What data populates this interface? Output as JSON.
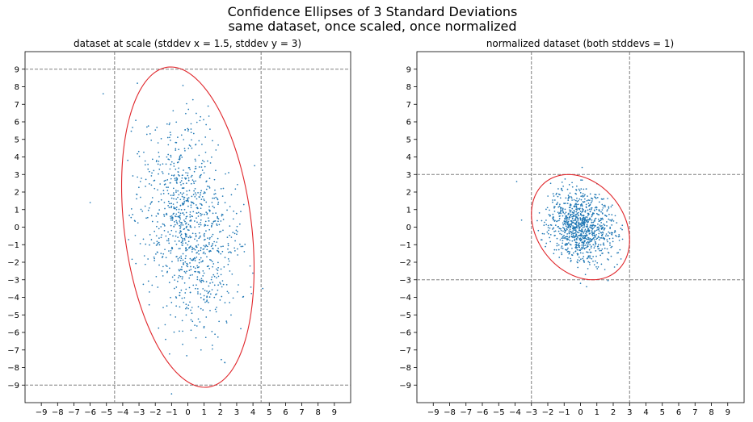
{
  "figure": {
    "title": "Confidence Ellipses of 3 Standard Deviations",
    "subtitle": "same dataset, once scaled, once normalized"
  },
  "colors": {
    "points": "#1f77b4",
    "ellipse": "#e0262b",
    "guides": "#7f7f7f"
  },
  "chart_data": [
    {
      "type": "scatter",
      "title": "dataset at scale (stddev x = 1.5, stddev y = 3)",
      "xlim": [
        -10,
        10
      ],
      "ylim": [
        -10,
        10
      ],
      "xticks": [
        -9,
        -8,
        -7,
        -6,
        -5,
        -4,
        -3,
        -2,
        -1,
        0,
        1,
        2,
        3,
        4,
        5,
        6,
        7,
        8,
        9
      ],
      "yticks": [
        -9,
        -8,
        -7,
        -6,
        -5,
        -4,
        -3,
        -2,
        -1,
        0,
        1,
        2,
        3,
        4,
        5,
        6,
        7,
        8,
        9
      ],
      "vlines": [
        -4.5,
        4.5
      ],
      "hlines": [
        -9,
        9
      ],
      "grid": false,
      "points": {
        "count": 1000,
        "x_stddev": 1.5,
        "y_stddev": 3,
        "correlation": -0.25,
        "outliers": [
          [
            -5.2,
            7.6
          ],
          [
            -6,
            1.4
          ],
          [
            -1,
            -9.5
          ],
          [
            -3.1,
            8.2
          ],
          [
            4.1,
            3.5
          ],
          [
            4.6,
            -3.5
          ]
        ]
      },
      "ellipse": {
        "stddevs": 3,
        "center": [
          0,
          0
        ],
        "semi_major": 9.2,
        "semi_minor": 3.9,
        "angle_deg": 98
      }
    },
    {
      "type": "scatter",
      "title": "normalized dataset (both stddevs = 1)",
      "xlim": [
        -10,
        10
      ],
      "ylim": [
        -10,
        10
      ],
      "xticks": [
        -9,
        -8,
        -7,
        -6,
        -5,
        -4,
        -3,
        -2,
        -1,
        0,
        1,
        2,
        3,
        4,
        5,
        6,
        7,
        8,
        9
      ],
      "yticks": [
        -9,
        -8,
        -7,
        -6,
        -5,
        -4,
        -3,
        -2,
        -1,
        0,
        1,
        2,
        3,
        4,
        5,
        6,
        7,
        8,
        9
      ],
      "vlines": [
        -3,
        3
      ],
      "hlines": [
        -3,
        3
      ],
      "grid": false,
      "points": {
        "count": 1000,
        "x_stddev": 1,
        "y_stddev": 1,
        "correlation": -0.25,
        "outliers": [
          [
            -3.6,
            0.4
          ],
          [
            -3.9,
            2.6
          ],
          [
            0.1,
            3.4
          ],
          [
            0,
            -3.2
          ]
        ]
      },
      "ellipse": {
        "stddevs": 3,
        "center": [
          0,
          0
        ],
        "semi_major": 3.35,
        "semi_minor": 2.6,
        "angle_deg": 135
      }
    }
  ]
}
